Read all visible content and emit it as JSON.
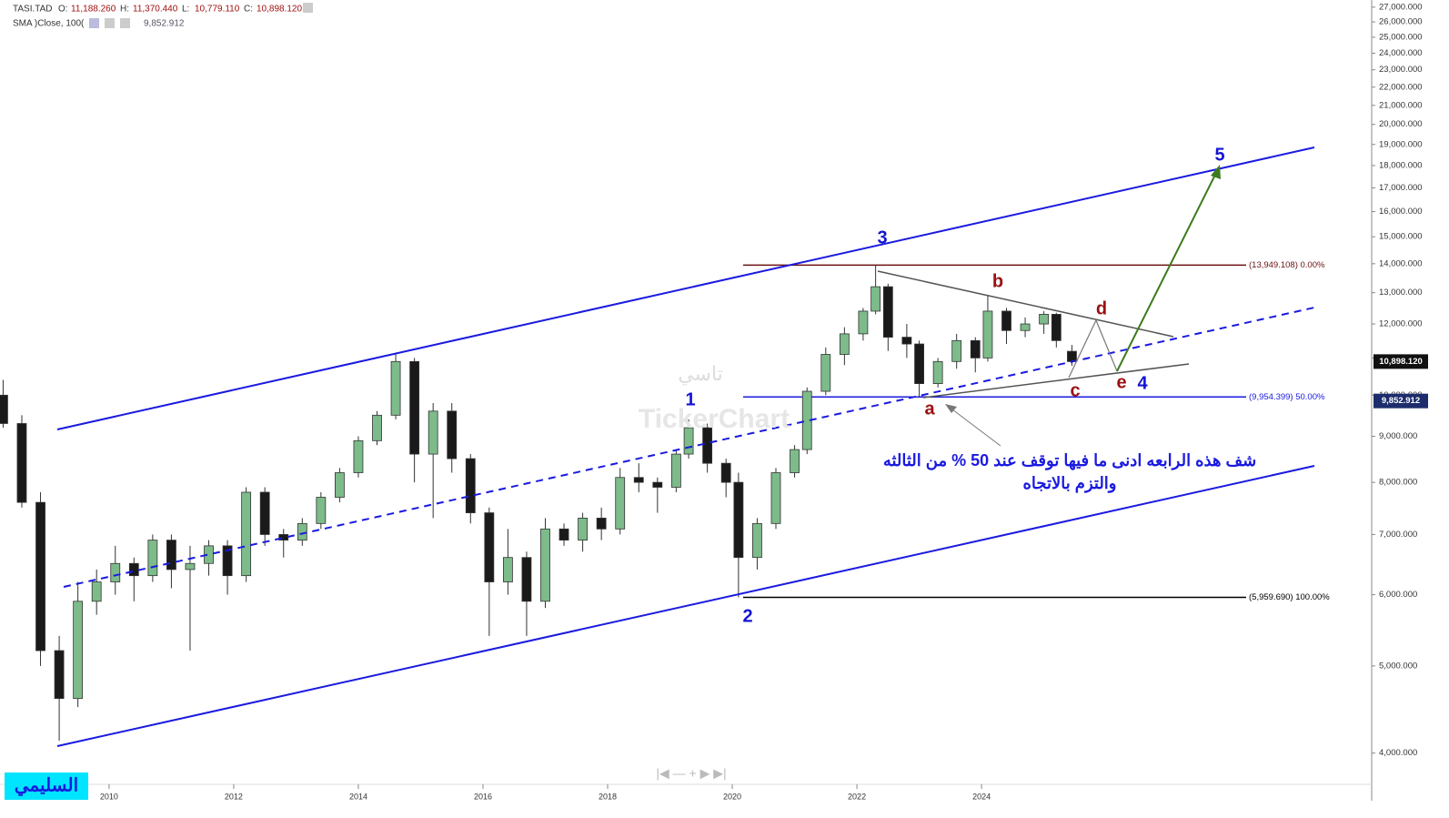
{
  "header": {
    "symbol": "TASI.TAD",
    "items": [
      {
        "key": "O:",
        "value": "11,188.260"
      },
      {
        "key": "H:",
        "value": "11,370.440"
      },
      {
        "key": "L:",
        "value": "10,779.110"
      },
      {
        "key": "C:",
        "value": "10,898.120"
      }
    ],
    "indicator": "SMA )Close, 100(",
    "indicator_value": "9,852.912"
  },
  "chart_data": {
    "type": "candlestick",
    "log_scale": true,
    "up_color": "#7dbb8a",
    "down_color": "#1a1a1a",
    "xlim": [
      2008.25,
      2030.26
    ],
    "xticks": [
      2010,
      2012,
      2014,
      2016,
      2018,
      2020,
      2022,
      2024
    ],
    "ylim": [
      3710,
      27500
    ],
    "yticks": [
      {
        "value": 4000,
        "label": "4,000.000"
      },
      {
        "value": 5000,
        "label": "5,000.000"
      },
      {
        "value": 6000,
        "label": "6,000.000"
      },
      {
        "value": 7000,
        "label": "7,000.000"
      },
      {
        "value": 8000,
        "label": "8,000.000"
      },
      {
        "value": 9000,
        "label": "9,000.000"
      },
      {
        "value": 10000,
        "label": "10,000.000"
      },
      {
        "value": 11000,
        "label": "11,000.000"
      },
      {
        "value": 12000,
        "label": "12,000.000"
      },
      {
        "value": 13000,
        "label": "13,000.000"
      },
      {
        "value": 14000,
        "label": "14,000.000"
      },
      {
        "value": 15000,
        "label": "15,000.000"
      },
      {
        "value": 16000,
        "label": "16,000.000"
      },
      {
        "value": 17000,
        "label": "17,000.000"
      },
      {
        "value": 18000,
        "label": "18,000.000"
      },
      {
        "value": 19000,
        "label": "19,000.000"
      },
      {
        "value": 20000,
        "label": "20,000.000"
      },
      {
        "value": 21000,
        "label": "21,000.000"
      },
      {
        "value": 22000,
        "label": "22,000.000"
      },
      {
        "value": 23000,
        "label": "23,000.000"
      },
      {
        "value": 24000,
        "label": "24,000.000"
      },
      {
        "value": 25000,
        "label": "25,000.000"
      },
      {
        "value": 26000,
        "label": "26,000.000"
      },
      {
        "value": 27000,
        "label": "27,000.000"
      }
    ],
    "x": [
      2008.3,
      2008.6,
      2008.9,
      2009.2,
      2009.5,
      2009.8,
      2010.1,
      2010.4,
      2010.7,
      2011.0,
      2011.3,
      2011.6,
      2011.9,
      2012.2,
      2012.5,
      2012.8,
      2013.1,
      2013.4,
      2013.7,
      2014.0,
      2014.3,
      2014.6,
      2014.9,
      2015.2,
      2015.5,
      2015.8,
      2016.1,
      2016.4,
      2016.7,
      2017.0,
      2017.3,
      2017.6,
      2017.9,
      2018.2,
      2018.5,
      2018.8,
      2019.1,
      2019.3,
      2019.6,
      2019.9,
      2020.1,
      2020.4,
      2020.7,
      2021.0,
      2021.2,
      2021.5,
      2021.8,
      2022.1,
      2022.3,
      2022.5,
      2022.8,
      2023.0,
      2023.3,
      2023.6,
      2023.9,
      2024.1,
      2024.4,
      2024.7,
      2025.0,
      2025.2,
      2025.45
    ],
    "open": [
      10000,
      9300,
      7600,
      5200,
      4600,
      5900,
      6200,
      6500,
      6300,
      6900,
      6400,
      6500,
      6800,
      6300,
      7800,
      7000,
      6900,
      7200,
      7700,
      8200,
      8900,
      9500,
      10900,
      8600,
      9600,
      8500,
      7400,
      6200,
      6600,
      5900,
      7100,
      6900,
      7300,
      7100,
      8100,
      8000,
      7900,
      8600,
      9200,
      8400,
      8000,
      6600,
      7200,
      8200,
      8700,
      10100,
      11100,
      11700,
      12400,
      13200,
      11600,
      11400,
      10300,
      10900,
      11500,
      11000,
      12400,
      11800,
      12000,
      12300,
      11188.26
    ],
    "high": [
      10400,
      9500,
      7800,
      5400,
      6200,
      6400,
      6800,
      6600,
      7000,
      7000,
      6800,
      6900,
      6900,
      7900,
      7900,
      7100,
      7300,
      7800,
      8300,
      9000,
      9600,
      11150,
      11000,
      9800,
      9800,
      8600,
      7500,
      7100,
      6700,
      7300,
      7200,
      7400,
      7500,
      8300,
      8400,
      8100,
      8700,
      9400,
      9300,
      8500,
      8200,
      7300,
      8300,
      8800,
      10200,
      11300,
      11900,
      12500,
      13949,
      13300,
      12000,
      11500,
      11000,
      11700,
      11600,
      12900,
      12500,
      12200,
      12400,
      12350,
      11370.44
    ],
    "low": [
      9200,
      7500,
      5000,
      4130,
      4500,
      5700,
      6000,
      5900,
      6200,
      6100,
      5200,
      6300,
      6000,
      6200,
      6800,
      6600,
      6800,
      7100,
      7600,
      8100,
      8800,
      9400,
      8000,
      7300,
      8200,
      7200,
      5400,
      6000,
      5400,
      5800,
      6800,
      6700,
      6900,
      7000,
      7800,
      7400,
      7800,
      8500,
      8200,
      7700,
      5960,
      6400,
      7100,
      8100,
      8600,
      10000,
      10800,
      11500,
      12300,
      11200,
      11000,
      9954,
      10200,
      10700,
      10600,
      10900,
      11400,
      11600,
      11700,
      11300,
      10779.11
    ],
    "close": [
      9300,
      7600,
      5200,
      4600,
      5900,
      6200,
      6500,
      6300,
      6900,
      6400,
      6500,
      6800,
      6300,
      7800,
      7000,
      6900,
      7200,
      7700,
      8200,
      8900,
      9500,
      10900,
      8600,
      9600,
      8500,
      7400,
      6200,
      6600,
      5900,
      7100,
      6900,
      7300,
      7100,
      8100,
      8000,
      7900,
      8600,
      9200,
      8400,
      8000,
      6600,
      7200,
      8200,
      8700,
      10100,
      11100,
      11700,
      12400,
      13200,
      11600,
      11400,
      10300,
      10900,
      11500,
      11000,
      12400,
      11800,
      12000,
      12300,
      11500,
      10898.12
    ],
    "fib_levels": [
      {
        "value": 13949.108,
        "label": "(13,949.108) 0.00%",
        "color": "#6b1010"
      },
      {
        "value": 9954.399,
        "label": "(9,954.399) 50.00%",
        "color": "#1a1ae0"
      },
      {
        "value": 5959.69,
        "label": "(5,959.690) 100.00%",
        "color": "#000"
      }
    ],
    "price_tags": [
      {
        "value": 10898.12,
        "label": "10,898.120",
        "color": "#111"
      },
      {
        "value": 9852.912,
        "label": "9,852.912",
        "color": "#1c2c6c"
      }
    ]
  },
  "annotations": {
    "waves": [
      "1",
      "2",
      "3",
      "4",
      "5"
    ],
    "subwaves": [
      "a",
      "b",
      "c",
      "d",
      "e"
    ],
    "comment": [
      "شف هذه الرابعه ادنى ما فيها توقف عند 50 % من الثالثه",
      "والتزم بالاتجاه"
    ],
    "watermark_ar": "تاسي",
    "watermark": "TickerChart",
    "author": "السليمي"
  }
}
